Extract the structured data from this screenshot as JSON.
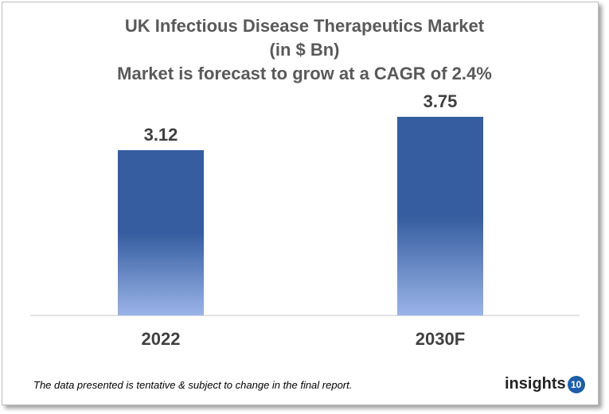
{
  "chart_data": {
    "type": "bar",
    "title": [
      "UK Infectious Disease Therapeutics Market",
      "(in $ Bn)",
      "Market is forecast to grow at a CAGR of 2.4%"
    ],
    "categories": [
      "2022",
      "2030F"
    ],
    "values": [
      3.12,
      3.75
    ],
    "data_labels": [
      "3.12",
      "3.75"
    ],
    "ylim": [
      0,
      3.75
    ],
    "grid": false,
    "colors": {
      "bar_top": "#355d9f",
      "bar_bottom": "#9ab4e8"
    }
  },
  "footer": {
    "note": "The data presented is tentative & subject to change in the final report.",
    "logo_text": "insights",
    "logo_badge": "10"
  }
}
